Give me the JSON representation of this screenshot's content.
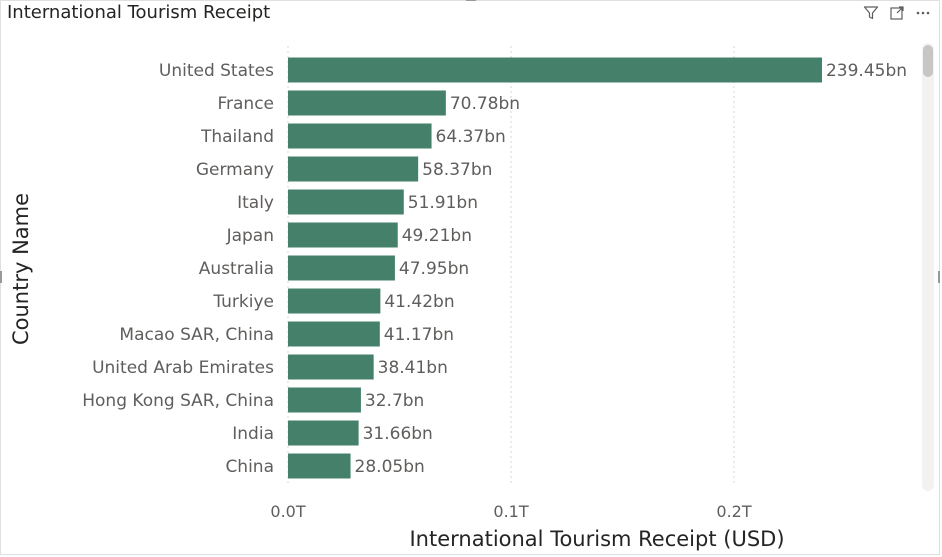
{
  "visual": {
    "title": "International Tourism Receipt",
    "icons": [
      "filter-icon",
      "focus-mode-icon",
      "more-options-icon"
    ]
  },
  "colors": {
    "bar": "#44806a",
    "gridline": "#d6d6d6",
    "text": "#605e5c"
  },
  "chart_data": {
    "type": "bar",
    "orientation": "horizontal",
    "title": "International Tourism Receipt",
    "xlabel": "International Tourism Receipt (USD)",
    "ylabel": "Country Name",
    "categories": [
      "United States",
      "France",
      "Thailand",
      "Germany",
      "Italy",
      "Japan",
      "Australia",
      "Turkiye",
      "Macao SAR, China",
      "United Arab Emirates",
      "Hong Kong SAR, China",
      "India",
      "China"
    ],
    "values": [
      239.45,
      70.78,
      64.37,
      58.37,
      51.91,
      49.21,
      47.95,
      41.42,
      41.17,
      38.41,
      32.7,
      31.66,
      28.05
    ],
    "value_labels": [
      "239.45bn",
      "70.78bn",
      "64.37bn",
      "58.37bn",
      "51.91bn",
      "49.21bn",
      "47.95bn",
      "41.42bn",
      "41.17bn",
      "38.41bn",
      "32.7bn",
      "31.66bn",
      "28.05bn"
    ],
    "value_unit": "bn USD",
    "xticks": [
      0,
      100,
      200
    ],
    "xtick_labels": [
      "0.0T",
      "0.1T",
      "0.2T"
    ],
    "xlim": [
      0,
      250
    ],
    "grid": true
  }
}
